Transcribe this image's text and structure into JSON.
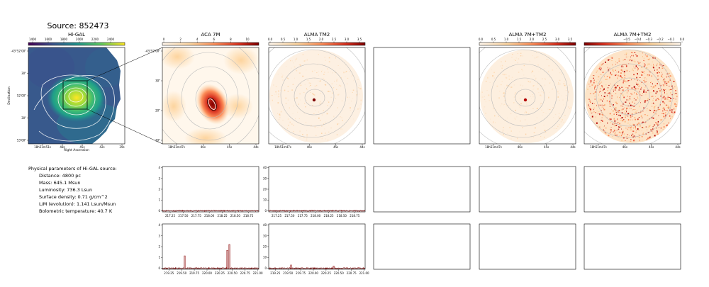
{
  "title": "Source: 852473",
  "higal": {
    "title": "Hi-GAL",
    "colorbar_ticks": [
      "1400",
      "1600",
      "1800",
      "2000",
      "2200",
      "2400"
    ],
    "y_ticks": [
      "-43°52'00\"",
      "30\"",
      "52'00\"",
      "30\"",
      "53'00\""
    ],
    "x_ticks": [
      "18h51m51s",
      "48s",
      "45s",
      "42s",
      "39s"
    ],
    "ylabel": "Declination",
    "xlabel": "Right Ascension"
  },
  "aca": {
    "title": "ACA 7M",
    "colorbar_ticks": [
      "0",
      "2",
      "4",
      "6",
      "8",
      "10"
    ],
    "y_ticks": [
      "-43°52'00\"",
      "30\"",
      "20\"",
      "10\""
    ],
    "x_ticks": [
      "18h51m47s",
      "46s",
      "45s",
      "44s"
    ]
  },
  "tm2": {
    "title": "ALMA TM2",
    "colorbar_ticks": [
      "0.0",
      "0.5",
      "1.0",
      "1.5",
      "2.0",
      "2.5",
      "3.0",
      "3.5"
    ],
    "x_ticks": [
      "18h51m47s",
      "46s",
      "45s",
      "44s"
    ]
  },
  "combo": {
    "title": "ALMA 7M+TM2",
    "colorbar_ticks": [
      "0.0",
      "0.5",
      "1.0",
      "1.5",
      "2.0",
      "2.5",
      "3.0",
      "3.5"
    ],
    "x_ticks": [
      "18h51m47s",
      "46s",
      "45s",
      "44s"
    ]
  },
  "combo2": {
    "title": "ALMA 7M+TM2",
    "colorbar_ticks": [
      "−0.5",
      "−0.4",
      "−0.3",
      "−0.2",
      "−0.1",
      "0.0"
    ],
    "x_ticks": [
      "18h51m47s",
      "46s",
      "45s",
      "44s"
    ]
  },
  "params": {
    "heading": "Physical parameters of Hi-GAL source:",
    "lines": [
      "Distance: 4800 pc",
      "Mass: 645.1 Msun",
      "Luminosity: 736.3 Lsun",
      "Surface density: 0.71 g/cm^2",
      "L/M (evolution): 1.141 Lsun/Msun",
      "Bolometric temperature: 40.7 K"
    ]
  },
  "chart_data": [
    {
      "type": "line",
      "name": "spectrum-aca-row1",
      "x_ticks": [
        "217.25",
        "217.50",
        "217.75",
        "218.00",
        "218.25",
        "218.50",
        "218.75"
      ],
      "y_ticks": [
        "0",
        "1",
        "2",
        "3",
        "4"
      ],
      "xlim": [
        217.1,
        218.95
      ],
      "ylim": [
        -0.1,
        4.1
      ],
      "baseline": 0.0,
      "peaks": []
    },
    {
      "type": "line",
      "name": "spectrum-tm2-row1",
      "x_ticks": [
        "217.25",
        "217.50",
        "217.75",
        "218.00",
        "218.25",
        "218.50",
        "218.75"
      ],
      "y_ticks": [
        "0",
        "10",
        "20",
        "30",
        "40"
      ],
      "xlim": [
        217.1,
        218.95
      ],
      "ylim": [
        -1,
        41
      ],
      "baseline": 0.0,
      "peaks": []
    },
    {
      "type": "line",
      "name": "spectrum-aca-row2",
      "x_ticks": [
        "219.25",
        "219.50",
        "219.75",
        "220.00",
        "220.25",
        "220.50",
        "220.75",
        "221.00"
      ],
      "y_ticks": [
        "0",
        "1",
        "2",
        "3",
        "4"
      ],
      "xlim": [
        219.12,
        221.02
      ],
      "ylim": [
        -0.1,
        4.1
      ],
      "baseline": 0.0,
      "peaks": [
        [
          219.56,
          1.15
        ],
        [
          220.4,
          1.65
        ],
        [
          220.44,
          2.2
        ]
      ]
    },
    {
      "type": "line",
      "name": "spectrum-tm2-row2",
      "x_ticks": [
        "219.25",
        "219.50",
        "219.75",
        "220.00",
        "220.25",
        "220.50",
        "220.75",
        "221.00"
      ],
      "y_ticks": [
        "0",
        "10",
        "20",
        "30",
        "40"
      ],
      "xlim": [
        219.12,
        221.02
      ],
      "ylim": [
        -1,
        41
      ],
      "baseline": 0.0,
      "peaks": [
        [
          219.56,
          3.0
        ],
        [
          220.4,
          2.0
        ]
      ]
    }
  ]
}
